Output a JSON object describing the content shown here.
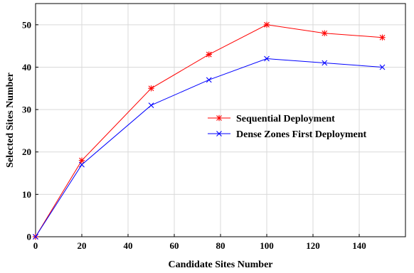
{
  "chart_data": {
    "type": "line",
    "title": "",
    "xlabel": "Candidate Sites Number",
    "ylabel": "Selected Sites Number",
    "xlim": [
      0,
      160
    ],
    "ylim": [
      0,
      55
    ],
    "xticks": [
      0,
      20,
      40,
      60,
      80,
      100,
      120,
      140
    ],
    "yticks": [
      0,
      10,
      20,
      30,
      40,
      50
    ],
    "grid": true,
    "legend_position": "center-right",
    "x": [
      0,
      20,
      50,
      75,
      100,
      125,
      150
    ],
    "series": [
      {
        "name": "Sequential Deployment",
        "values": [
          0,
          18,
          35,
          43,
          50,
          48,
          47
        ],
        "color": "#ff0000",
        "marker": "asterisk"
      },
      {
        "name": "Dense Zones First Deployment",
        "values": [
          0,
          17,
          31,
          37,
          42,
          41,
          40
        ],
        "color": "#0000ff",
        "marker": "x"
      }
    ]
  }
}
